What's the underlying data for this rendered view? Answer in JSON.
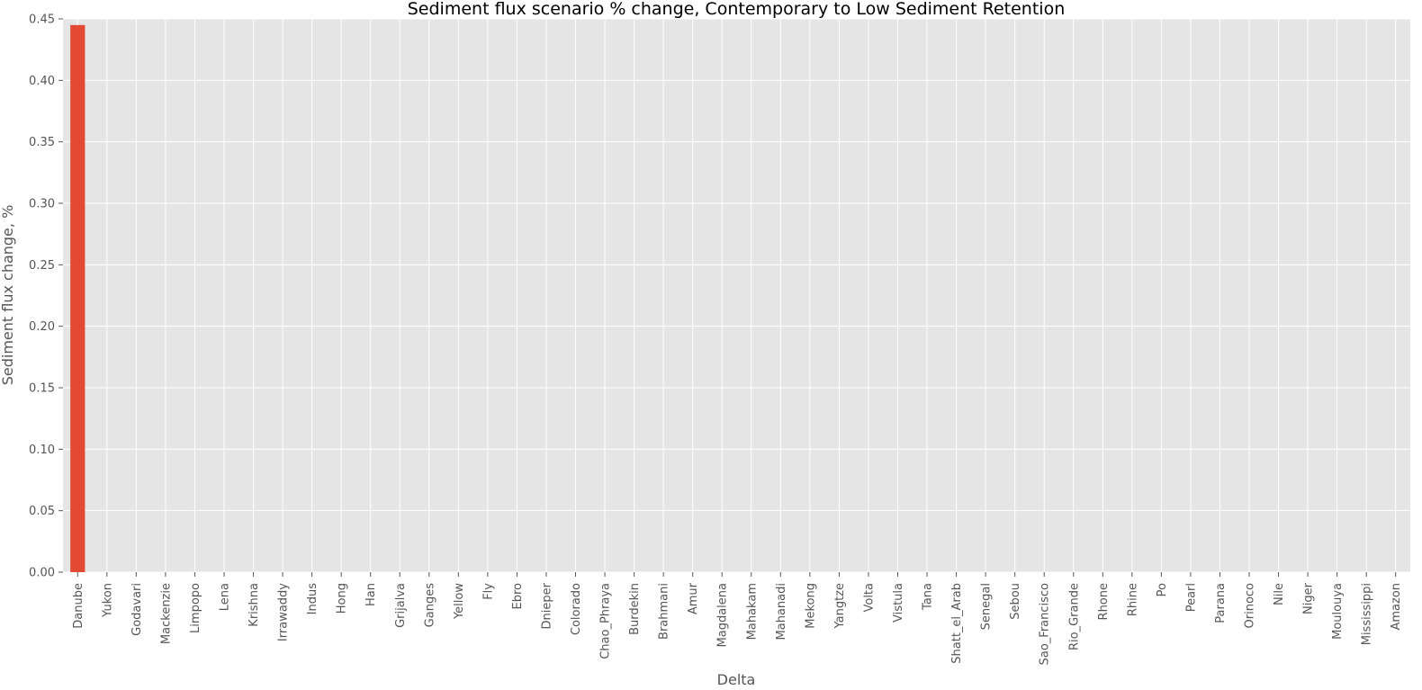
{
  "chart_data": {
    "type": "bar",
    "title": "Sediment flux scenario % change, Contemporary to Low Sediment Retention",
    "xlabel": "Delta",
    "ylabel": "Sediment flux change, %",
    "ylim": [
      0,
      0.45
    ],
    "yticks": [
      "0.00",
      "0.05",
      "0.10",
      "0.15",
      "0.20",
      "0.25",
      "0.30",
      "0.35",
      "0.40",
      "0.45"
    ],
    "grid": true,
    "colors": {
      "bar": "#E24A33",
      "background": "#E5E5E5",
      "grid": "#FFFFFF",
      "text": "#555555"
    },
    "categories": [
      "Danube",
      "Yukon",
      "Godavari",
      "Mackenzie",
      "Limpopo",
      "Lena",
      "Krishna",
      "Irrawaddy",
      "Indus",
      "Hong",
      "Han",
      "Grijalva",
      "Ganges",
      "Yellow",
      "Fly",
      "Ebro",
      "Dnieper",
      "Colorado",
      "Chao_Phraya",
      "Burdekin",
      "Brahmani",
      "Amur",
      "Magdalena",
      "Mahakam",
      "Mahanadi",
      "Mekong",
      "Yangtze",
      "Volta",
      "Vistula",
      "Tana",
      "Shatt_el_Arab",
      "Senegal",
      "Sebou",
      "Sao_Francisco",
      "Rio_Grande",
      "Rhone",
      "Rhine",
      "Po",
      "Pearl",
      "Parana",
      "Orinoco",
      "Nile",
      "Niger",
      "Moulouya",
      "Mississippi",
      "Amazon"
    ],
    "values": [
      0.445,
      0,
      0,
      0,
      0,
      0,
      0,
      0,
      0,
      0,
      0,
      0,
      0,
      0,
      0,
      0,
      0,
      0,
      0,
      0,
      0,
      0,
      0,
      0,
      0,
      0,
      0,
      0,
      0,
      0,
      0,
      0,
      0,
      0,
      0,
      0,
      0,
      0,
      0,
      0,
      0,
      0,
      0,
      0,
      0,
      0
    ]
  }
}
